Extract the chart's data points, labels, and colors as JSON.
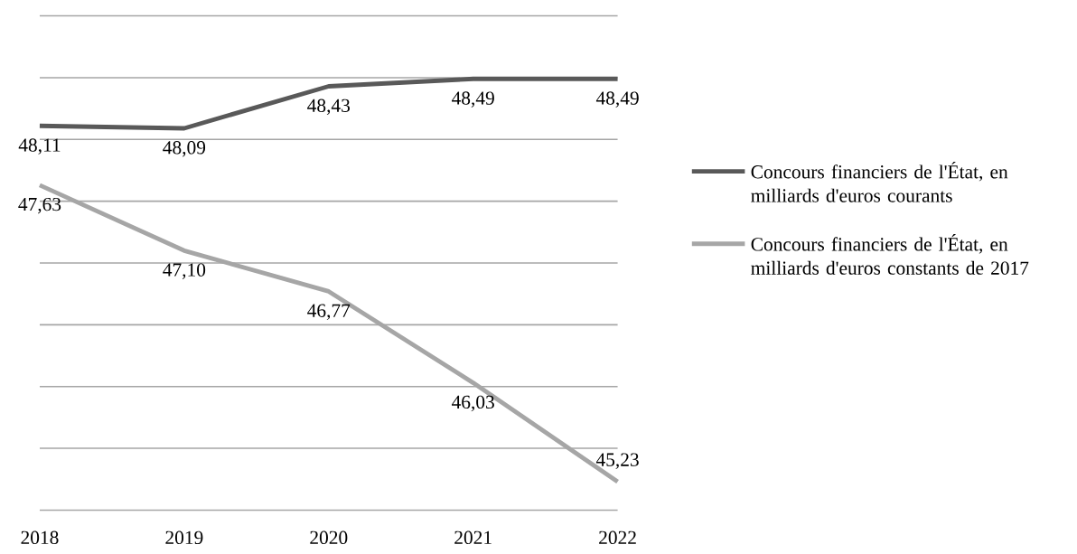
{
  "chart_data": {
    "type": "line",
    "categories": [
      "2018",
      "2019",
      "2020",
      "2021",
      "2022"
    ],
    "series": [
      {
        "name": "Concours financiers de l'État, en milliards d'euros courants",
        "color": "#595959",
        "values": [
          48.11,
          48.09,
          48.43,
          48.49,
          48.49
        ],
        "value_labels": [
          "48,11",
          "48,09",
          "48,43",
          "48,49",
          "48,49"
        ]
      },
      {
        "name": "Concours financiers de l'État, en milliards d'euros constants de 2017",
        "color": "#a6a6a6",
        "values": [
          47.63,
          47.1,
          46.77,
          46.03,
          45.23
        ],
        "value_labels": [
          "47,63",
          "47,10",
          "46,77",
          "46,03",
          "45,23"
        ]
      }
    ],
    "ylim": [
      45,
      49
    ],
    "yticks": [
      {
        "value": 45,
        "label": null
      },
      {
        "value": 45.5,
        "label": null
      },
      {
        "value": 46,
        "label": null
      },
      {
        "value": 46.5,
        "label": null
      },
      {
        "value": 47,
        "label": null
      },
      {
        "value": 47.5,
        "label": null
      },
      {
        "value": 48,
        "label": null
      },
      {
        "value": 48.5,
        "label": null
      },
      {
        "value": 49,
        "label": null
      }
    ],
    "grid": "y",
    "legend": "right"
  }
}
